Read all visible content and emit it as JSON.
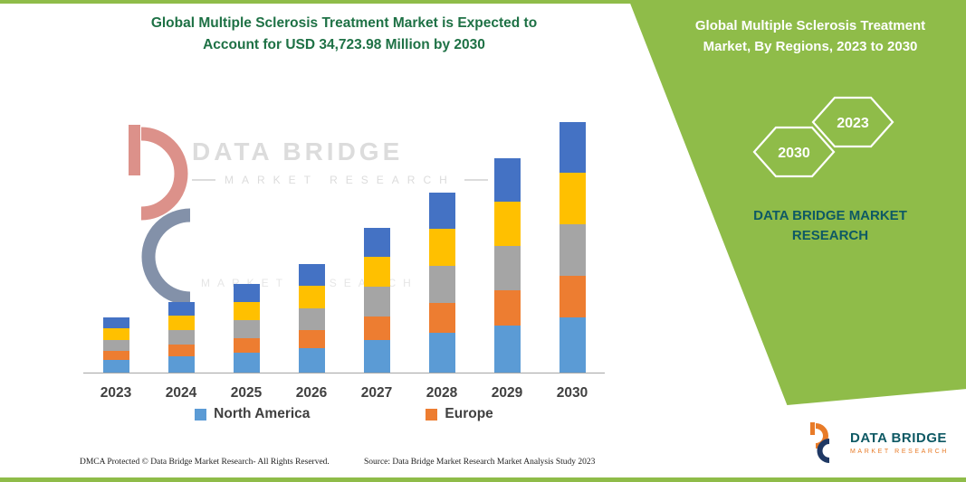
{
  "colors": {
    "green": "#8FBC49",
    "title_green": "#1E7145",
    "brand_teal": "#0E5964",
    "text_dark": "#404040",
    "axis_gray": "#A6A6A6",
    "logo_navy": "#1F3864",
    "logo_orange": "#E87B28",
    "wm_gray": "#DCDCDC"
  },
  "header": {
    "title_line1": "Global Multiple Sclerosis Treatment Market is Expected to",
    "title_line2": "Account for USD 34,723.98 Million by 2030"
  },
  "right_panel": {
    "title": "Global Multiple Sclerosis Treatment Market, By Regions, 2023 to 2030",
    "hexagon_left": "2030",
    "hexagon_right": "2023",
    "brand_line1": "DATA BRIDGE MARKET",
    "brand_line2": "RESEARCH"
  },
  "watermark": {
    "brand": "DATA BRIDGE",
    "sub": "MARKET RESEARCH",
    "sub2": "MARKET RESEARCH"
  },
  "logo": {
    "name": "DATA BRIDGE",
    "tagline": "MARKET RESEARCH"
  },
  "footer": {
    "dmca": "DMCA Protected © Data Bridge Market Research-  All Rights Reserved.",
    "source": "Source: Data Bridge Market Research  Market Analysis Study 2023"
  },
  "chart_data": {
    "type": "bar",
    "stacked": true,
    "title": "Global Multiple Sclerosis Treatment Market is Expected to Account for USD 34,723.98 Million by 2030",
    "xlabel": "",
    "ylabel": "",
    "y_axis_visible": false,
    "grid": false,
    "legend_position": "bottom",
    "categories": [
      "2023",
      "2024",
      "2025",
      "2026",
      "2027",
      "2028",
      "2029",
      "2030"
    ],
    "series": [
      {
        "name": "North America",
        "color": "#5B9BD5",
        "values": [
          14,
          18,
          22,
          27,
          36,
          44,
          52,
          61
        ]
      },
      {
        "name": "Europe",
        "color": "#ED7D31",
        "values": [
          10,
          13,
          16,
          20,
          26,
          33,
          39,
          46
        ]
      },
      {
        "name": "",
        "color": "#A5A5A5",
        "values": [
          12,
          16,
          20,
          24,
          33,
          41,
          49,
          57
        ]
      },
      {
        "name": "",
        "color": "#FFC000",
        "values": [
          13,
          16,
          20,
          25,
          33,
          41,
          49,
          57
        ]
      },
      {
        "name": "",
        "color": "#4472C4",
        "values": [
          12,
          15,
          20,
          24,
          32,
          40,
          48,
          56
        ]
      }
    ],
    "legend": [
      {
        "label": "North America",
        "color": "#5B9BD5"
      },
      {
        "label": "Europe",
        "color": "#ED7D31"
      }
    ],
    "totals_relative": [
      61,
      78,
      98,
      120,
      160,
      199,
      237,
      277
    ],
    "value_units": "relative height (no y-axis shown)"
  }
}
